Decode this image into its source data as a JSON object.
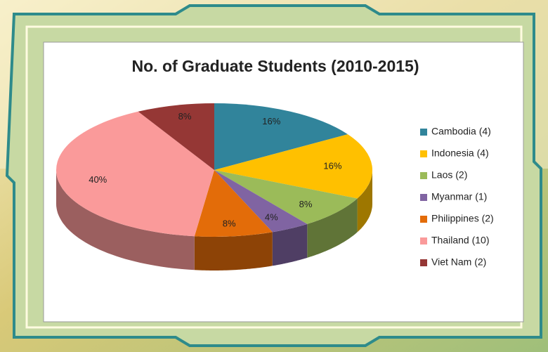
{
  "chart_data": {
    "type": "pie3d",
    "title": "No. of Graduate Students (2010-2015)",
    "categories": [
      "Cambodia (4)",
      "Indonesia (4)",
      "Laos (2)",
      "Myanmar (1)",
      "Philippines (2)",
      "Thailand (10)",
      "Viet Nam (2)"
    ],
    "values": [
      16,
      16,
      8,
      4,
      8,
      40,
      8
    ],
    "value_labels": [
      "16%",
      "16%",
      "8%",
      "4%",
      "8%",
      "40%",
      "8%"
    ],
    "colors": [
      "#31849b",
      "#ffc000",
      "#9bbb59",
      "#8064a2",
      "#e36c09",
      "#fa9a9a",
      "#953735"
    ],
    "legend": "right"
  }
}
